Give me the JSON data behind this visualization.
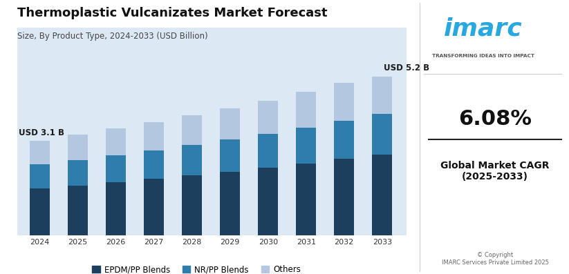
{
  "title": "Thermoplastic Vulcanizates Market Forecast",
  "subtitle": "Size, By Product Type, 2024-2033 (USD Billion)",
  "years": [
    2024,
    2025,
    2026,
    2027,
    2028,
    2029,
    2030,
    2031,
    2032,
    2033
  ],
  "epdm_pp": [
    1.55,
    1.64,
    1.74,
    1.85,
    1.97,
    2.09,
    2.22,
    2.35,
    2.5,
    2.65
  ],
  "nr_pp": [
    0.78,
    0.83,
    0.88,
    0.93,
    0.99,
    1.05,
    1.11,
    1.18,
    1.25,
    1.33
  ],
  "others": [
    0.77,
    0.83,
    0.88,
    0.92,
    0.97,
    1.02,
    1.07,
    1.17,
    1.25,
    1.22
  ],
  "color_epdm": "#1c3f5e",
  "color_nr": "#2e7dac",
  "color_others": "#b3c8e0",
  "bg_color": "#dce9f5",
  "annotation_2024": "USD 3.1 B",
  "annotation_2033": "USD 5.2 B",
  "legend_labels": [
    "EPDM/PP Blends",
    "NR/PP Blends",
    "Others"
  ],
  "cagr_text": "6.08%",
  "cagr_label": "Global Market CAGR\n(2025-2033)",
  "copyright_text": "© Copyright\nIMARC Services Private Limited 2025",
  "imarc_text": "imarc",
  "imarc_sub": "TRANSFORMING IDEAS INTO IMPACT"
}
